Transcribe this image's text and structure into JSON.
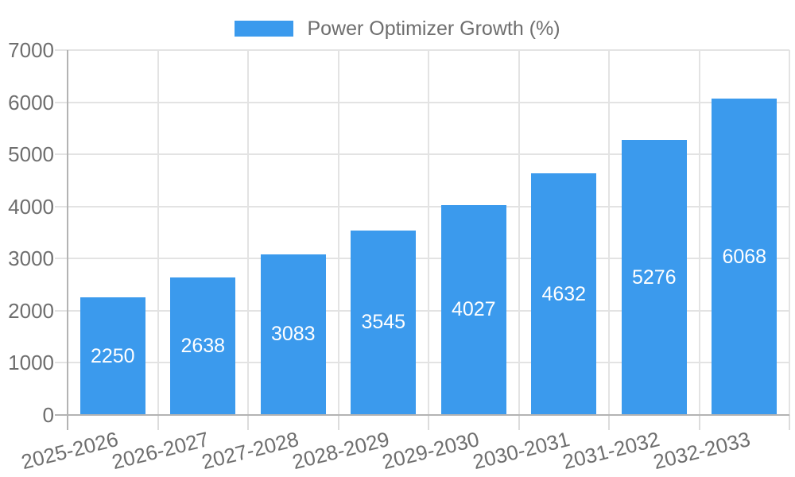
{
  "legend": {
    "label": "Power Optimizer Growth (%)",
    "swatch_color": "#3B9AED",
    "text_color": "#6e6e6e"
  },
  "chart_data": {
    "type": "bar",
    "title": "",
    "xlabel": "",
    "ylabel": "",
    "categories": [
      "2025-2026",
      "2026-2027",
      "2027-2028",
      "2028-2029",
      "2029-2030",
      "2030-2031",
      "2031-2032",
      "2032-2033"
    ],
    "values": [
      2250,
      2638,
      3083,
      3545,
      4027,
      4632,
      5276,
      6068
    ],
    "series_name": "Power Optimizer Growth (%)",
    "ylim": [
      0,
      7000
    ],
    "yticks": [
      0,
      1000,
      2000,
      3000,
      4000,
      5000,
      6000,
      7000
    ],
    "grid": true,
    "legend_position": "top",
    "x_label_rotation_deg": -14,
    "bar_color": "#3B9AED",
    "value_label_color": "#ffffff",
    "axis_text_color": "#6e6e6e",
    "grid_color": "#e3e3e3",
    "axis_line_color": "#b3b3b3",
    "tick_mark_color": "#dcdcdc",
    "background_color": "#ffffff"
  }
}
